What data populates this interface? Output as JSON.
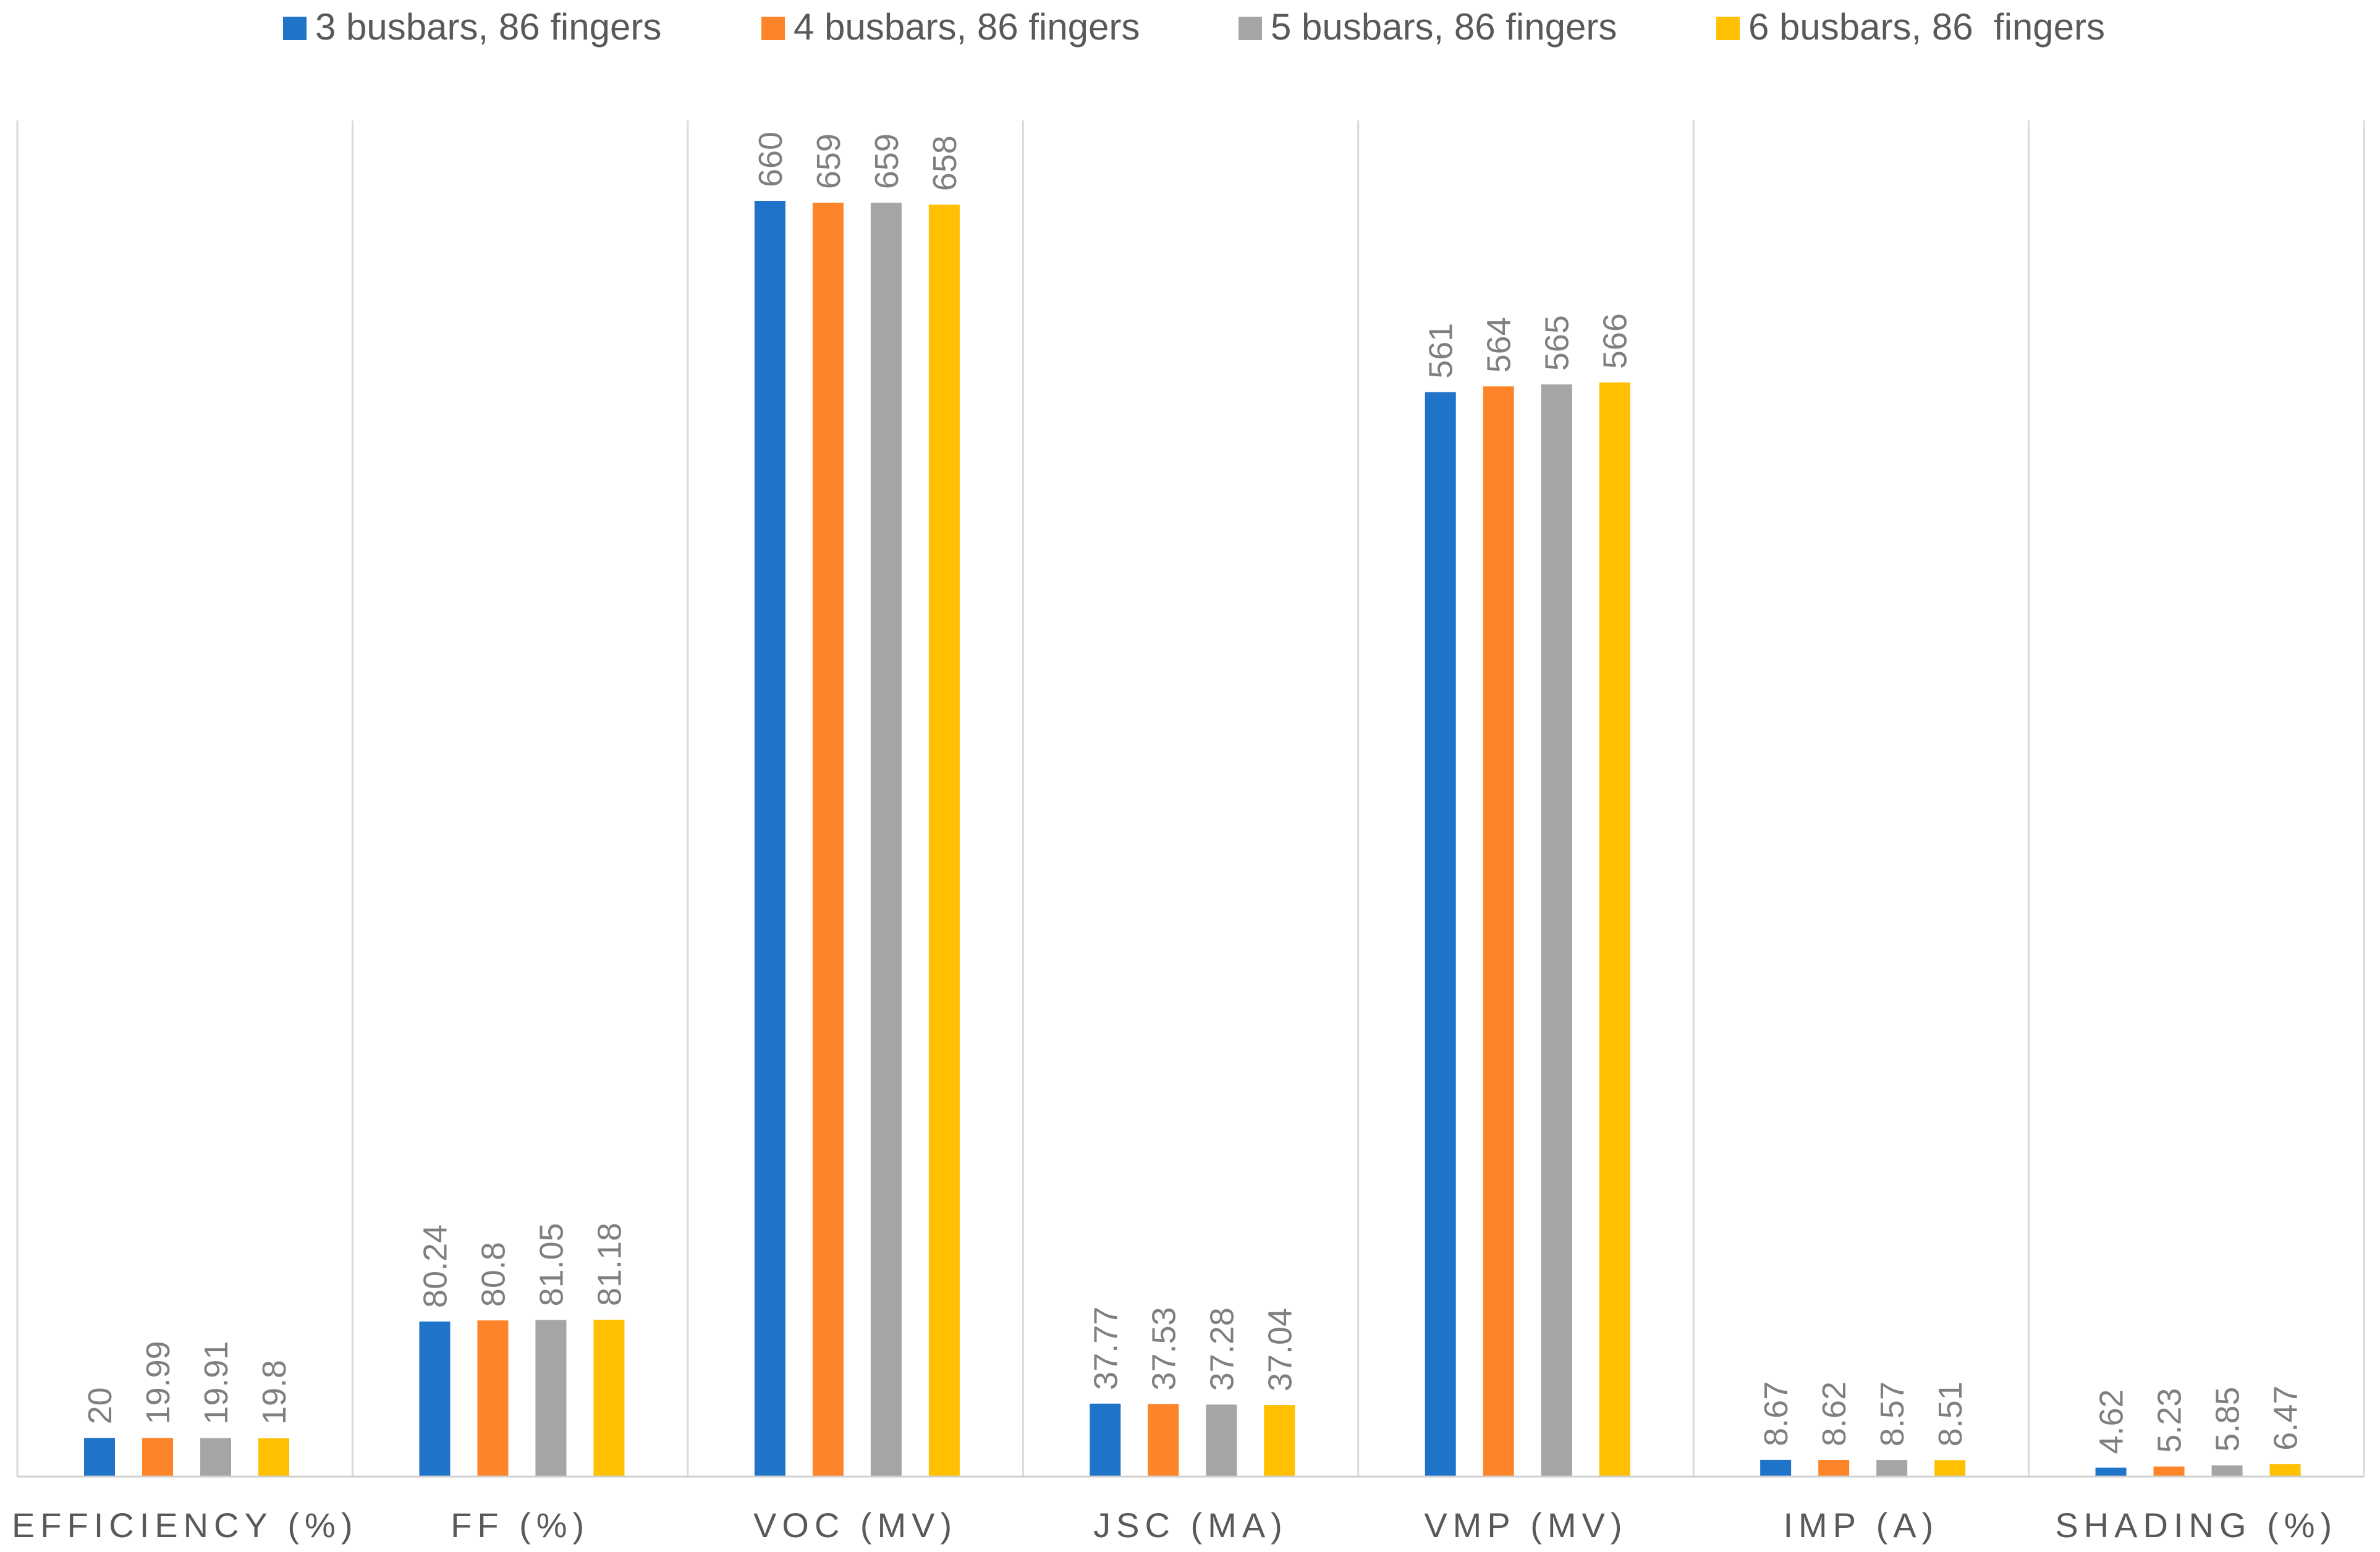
{
  "chart_data": {
    "type": "bar",
    "title": "",
    "xlabel": "",
    "ylabel": "",
    "ylim": [
      0,
      700
    ],
    "grid": false,
    "legend_position": "top",
    "categories": [
      "EFFICIENCY (%)",
      "FF (%)",
      "VOC (MV)",
      "JSC (MA)",
      "VMP (MV)",
      "IMP (A)",
      "SHADING (%)"
    ],
    "series": [
      {
        "name": "3 busbars, 86 fingers",
        "color": "#1f74c9",
        "values": [
          20,
          80.24,
          660,
          37.77,
          561,
          8.67,
          4.62
        ],
        "labels": [
          "20",
          "80.24",
          "660",
          "37.77",
          "561",
          "8.67",
          "4.62"
        ]
      },
      {
        "name": "4 busbars, 86 fingers",
        "color": "#fd8428",
        "values": [
          19.99,
          80.8,
          659,
          37.53,
          564,
          8.62,
          5.23
        ],
        "labels": [
          "19.99",
          "80.8",
          "659",
          "37.53",
          "564",
          "8.62",
          "5.23"
        ]
      },
      {
        "name": "5 busbars, 86 fingers",
        "color": "#a5a5a5",
        "values": [
          19.91,
          81.05,
          659,
          37.28,
          565,
          8.57,
          5.85
        ],
        "labels": [
          "19.91",
          "81.05",
          "659",
          "37.28",
          "565",
          "8.57",
          "5.85"
        ]
      },
      {
        "name": "6 busbars, 86  fingers",
        "color": "#fec000",
        "values": [
          19.8,
          81.18,
          658,
          37.04,
          566,
          8.51,
          6.47
        ],
        "labels": [
          "19.8",
          "81.18",
          "658",
          "37.04",
          "566",
          "8.51",
          "6.47"
        ]
      }
    ]
  },
  "colors": {
    "label_text": "#7f7f7f",
    "axis_text": "#595959",
    "divider": "#d9d9d9",
    "axis_line": "#d0d0d0"
  }
}
